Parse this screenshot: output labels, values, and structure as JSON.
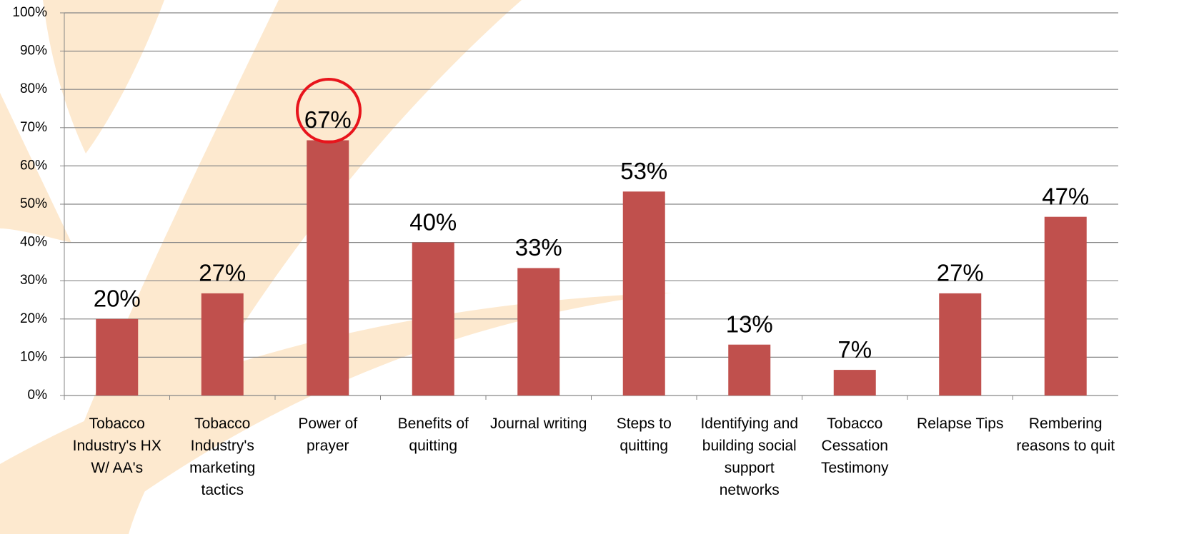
{
  "chart_data": {
    "type": "bar",
    "categories": [
      "Tobacco Industry's HX W/ AA's",
      "Tobacco Industry's marketing tactics",
      "Power of prayer",
      "Benefits of quitting",
      "Journal writing",
      "Steps to quitting",
      "Identifying and building social support networks",
      "Tobacco Cessation Testimony",
      "Relapse Tips",
      "Rembering reasons to quit"
    ],
    "values": [
      20,
      26.7,
      66.7,
      40,
      33.3,
      53.3,
      13.3,
      6.7,
      26.7,
      46.7
    ],
    "value_labels": [
      "20%",
      "27%",
      "67%",
      "40%",
      "33%",
      "53%",
      "13%",
      "7%",
      "27%",
      "47%"
    ],
    "color": "#c0504d",
    "ylim": [
      0,
      100
    ],
    "yticks": [
      {
        "value": 0,
        "label": "0%"
      },
      {
        "value": 10,
        "label": "10%"
      },
      {
        "value": 20,
        "label": "20%"
      },
      {
        "value": 30,
        "label": "30%"
      },
      {
        "value": 40,
        "label": "40%"
      },
      {
        "value": 50,
        "label": "50%"
      },
      {
        "value": 60,
        "label": "60%"
      },
      {
        "value": 70,
        "label": "70%"
      },
      {
        "value": 80,
        "label": "80%"
      },
      {
        "value": 90,
        "label": "90%"
      },
      {
        "value": 100,
        "label": "100%"
      }
    ],
    "grid": true
  }
}
